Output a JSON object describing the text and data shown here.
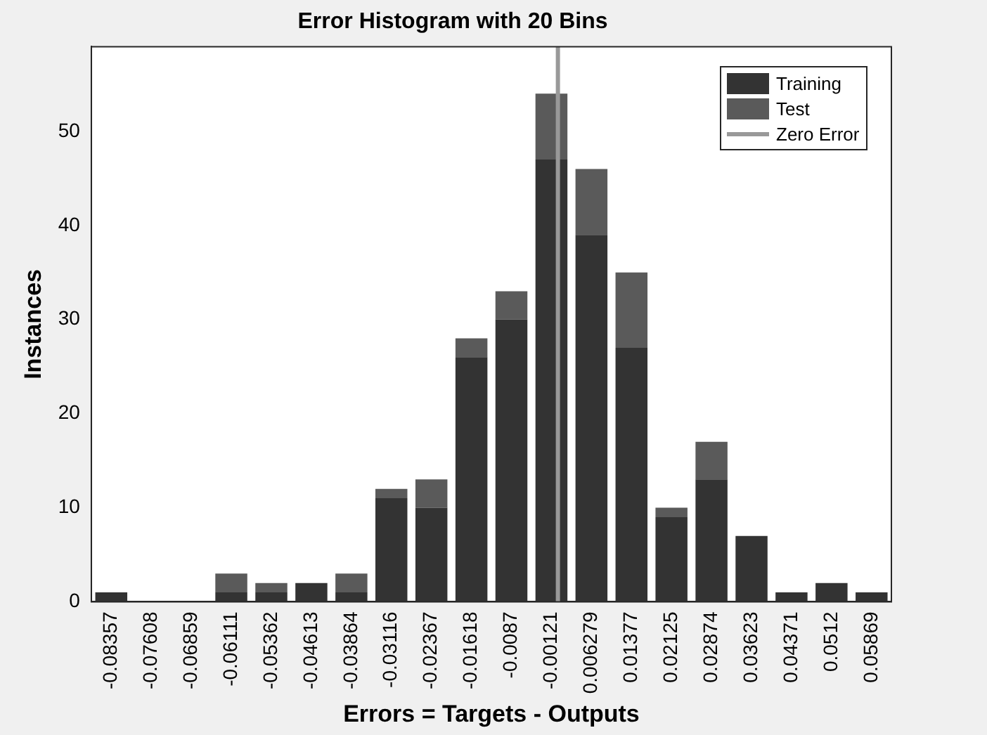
{
  "chart_data": {
    "type": "bar",
    "title": "Error Histogram with 20 Bins",
    "xlabel": "Errors = Targets - Outputs",
    "ylabel": "Instances",
    "x": [
      -0.08357,
      -0.07608,
      -0.06859,
      -0.06111,
      -0.05362,
      -0.04613,
      -0.03864,
      -0.03116,
      -0.02367,
      -0.01618,
      -0.0087,
      -0.00121,
      0.006279,
      0.01377,
      0.02125,
      0.02874,
      0.03623,
      0.04371,
      0.0512,
      0.05869
    ],
    "xlim": [
      -0.0873,
      0.0624
    ],
    "xticks": [
      -0.08357,
      -0.07608,
      -0.06859,
      -0.06111,
      -0.05362,
      -0.04613,
      -0.03864,
      -0.03116,
      -0.02367,
      -0.01618,
      -0.0087,
      -0.00121,
      0.006279,
      0.01377,
      0.02125,
      0.02874,
      0.03623,
      0.04371,
      0.0512,
      0.05869
    ],
    "series": [
      {
        "name": "Training",
        "color": "#333333",
        "values": [
          1,
          0,
          0,
          1,
          1,
          2,
          1,
          11,
          10,
          26,
          30,
          47,
          39,
          27,
          9,
          13,
          7,
          1,
          2,
          1
        ]
      },
      {
        "name": "Test",
        "color": "#5a5a5a",
        "values": [
          0,
          0,
          0,
          2,
          1,
          0,
          2,
          1,
          3,
          2,
          3,
          7,
          7,
          8,
          1,
          4,
          0,
          0,
          0,
          0
        ]
      },
      {
        "name": "Zero Error",
        "type": "line",
        "color": "#999999",
        "x": [
          0,
          0
        ],
        "values": [
          0,
          59
        ]
      }
    ],
    "stacked": true,
    "ylim": [
      0,
      59
    ],
    "yticks": [
      0,
      10,
      20,
      30,
      40,
      50
    ],
    "legend": "top right",
    "grid": false
  }
}
